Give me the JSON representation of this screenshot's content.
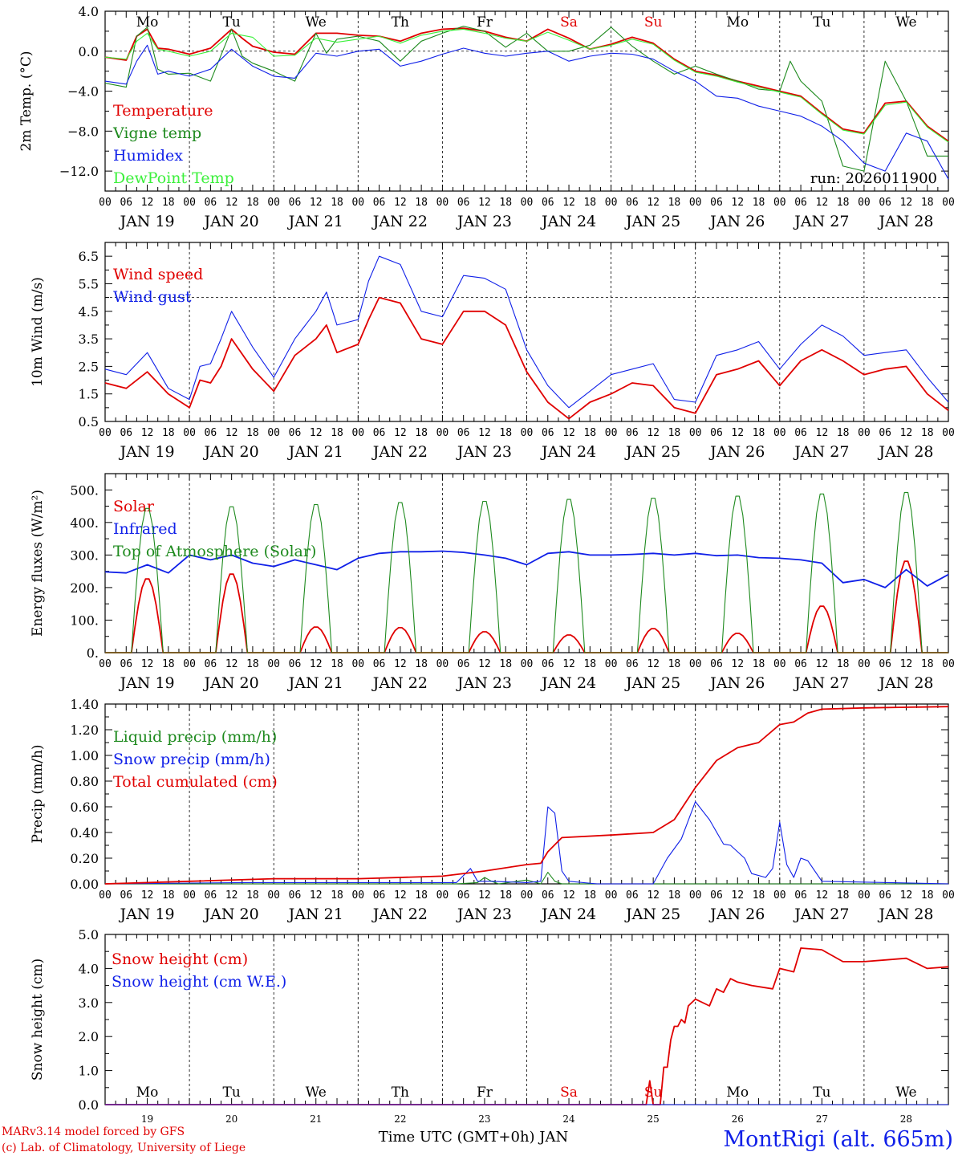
{
  "colors": {
    "red": "#e00000",
    "green": "#1e8a1e",
    "blue": "#1020e8",
    "lightgreen": "#3cf03c",
    "axis": "#000000"
  },
  "days": [
    "JAN 19",
    "JAN 20",
    "JAN 21",
    "JAN 22",
    "JAN 23",
    "JAN 24",
    "JAN 25",
    "JAN 26",
    "JAN 27",
    "JAN 28"
  ],
  "weekdays": [
    "Mo",
    "Tu",
    "We",
    "Th",
    "Fr",
    "Sa",
    "Su",
    "Mo",
    "Tu",
    "We"
  ],
  "weekend_flags": [
    false,
    false,
    false,
    false,
    false,
    true,
    true,
    false,
    false,
    false
  ],
  "day_numbers": [
    "19",
    "20",
    "21",
    "22",
    "23",
    "24",
    "25",
    "26",
    "27",
    "28"
  ],
  "hour_ticks": [
    "00",
    "06",
    "12",
    "18"
  ],
  "hour_end_tick": "00",
  "footer": {
    "model": "MARv3.14 model forced by GFS",
    "lab": "(c) Lab. of Climatology, University of Liege",
    "xlabel": "Time UTC (GMT+0h) JAN",
    "station": "MontRigi (alt. 665m)"
  },
  "chart_data": [
    {
      "type": "line",
      "id": "temp",
      "ylabel": "2m Temp. (°C)",
      "ylim": [
        -14,
        4
      ],
      "yticks": [
        4,
        0,
        -4,
        -8,
        -12
      ],
      "ytick_labels": [
        "4.0",
        "0.0",
        "−4.0",
        "−8.0",
        "−12.0"
      ],
      "refline": 0,
      "show_weekdays": true,
      "annotation": "run: 2026011900",
      "x_units": "hours since 2026-01-19 00 UTC",
      "series": [
        {
          "name": "Temperature",
          "color": "red",
          "x": [
            0,
            6,
            9,
            12,
            15,
            18,
            24,
            30,
            36,
            39,
            42,
            48,
            54,
            60,
            66,
            72,
            78,
            84,
            90,
            96,
            102,
            108,
            114,
            120,
            126,
            132,
            138,
            144,
            150,
            156,
            162,
            168,
            174,
            180,
            186,
            192,
            198,
            204,
            210,
            216,
            222,
            228,
            234,
            240
          ],
          "values": [
            -0.6,
            -0.9,
            1.5,
            2.2,
            0.3,
            0.2,
            -0.3,
            0.3,
            2.2,
            1.3,
            0.5,
            -0.1,
            -0.3,
            1.8,
            1.8,
            1.6,
            1.5,
            1.0,
            1.8,
            2.2,
            2.3,
            2.0,
            1.4,
            1.0,
            2.2,
            1.3,
            0.2,
            0.7,
            1.4,
            0.8,
            -0.8,
            -2.0,
            -2.4,
            -3.0,
            -3.5,
            -4.0,
            -4.5,
            -6.2,
            -7.8,
            -8.2,
            -5.2,
            -5.0,
            -7.5,
            -9.0
          ]
        },
        {
          "name": "Vigne temp",
          "color": "green",
          "x": [
            0,
            6,
            9,
            12,
            15,
            18,
            24,
            30,
            36,
            39,
            42,
            48,
            54,
            60,
            63,
            66,
            72,
            78,
            84,
            90,
            96,
            102,
            108,
            114,
            120,
            126,
            132,
            138,
            144,
            150,
            156,
            162,
            168,
            174,
            180,
            186,
            192,
            195,
            198,
            204,
            210,
            216,
            222,
            228,
            234,
            240
          ],
          "values": [
            -3.2,
            -3.6,
            1.5,
            2.4,
            -1.8,
            -2.3,
            -2.2,
            -3.0,
            2.2,
            -0.5,
            -1.2,
            -2.0,
            -3.0,
            1.8,
            -0.2,
            1.2,
            1.5,
            1.0,
            -1.0,
            1.0,
            1.8,
            2.5,
            2.0,
            0.4,
            1.8,
            0.0,
            0.0,
            0.6,
            2.4,
            0.5,
            -1.0,
            -2.3,
            -1.5,
            -2.3,
            -3.0,
            -3.8,
            -4.0,
            -1.0,
            -3.0,
            -5.0,
            -11.5,
            -12.0,
            -1.0,
            -5.0,
            -10.5,
            -10.5
          ]
        },
        {
          "name": "Humidex",
          "color": "blue",
          "x": [
            0,
            6,
            9,
            12,
            15,
            18,
            24,
            30,
            36,
            42,
            48,
            54,
            60,
            66,
            72,
            78,
            84,
            90,
            96,
            102,
            108,
            114,
            120,
            126,
            132,
            138,
            144,
            150,
            156,
            162,
            168,
            174,
            180,
            186,
            192,
            198,
            204,
            210,
            216,
            222,
            228,
            234,
            240
          ],
          "values": [
            -3.0,
            -3.3,
            -1.0,
            0.6,
            -2.3,
            -2.0,
            -2.5,
            -1.8,
            0.2,
            -1.5,
            -2.5,
            -2.7,
            -0.2,
            -0.5,
            0.0,
            0.2,
            -1.5,
            -1.0,
            -0.3,
            0.3,
            -0.2,
            -0.5,
            -0.2,
            0.0,
            -1.0,
            -0.5,
            -0.2,
            -0.3,
            -0.8,
            -2.0,
            -3.0,
            -4.5,
            -4.7,
            -5.5,
            -6.0,
            -6.5,
            -7.5,
            -9.0,
            -11.2,
            -12.0,
            -8.2,
            -9.0,
            -12.8
          ]
        },
        {
          "name": "DewPoint Temp",
          "color": "lightgreen",
          "x": [
            0,
            6,
            9,
            12,
            15,
            18,
            24,
            30,
            36,
            42,
            48,
            54,
            60,
            66,
            72,
            78,
            84,
            90,
            96,
            102,
            108,
            114,
            120,
            126,
            132,
            138,
            144,
            150,
            156,
            162,
            168,
            174,
            180,
            186,
            192,
            198,
            204,
            210,
            216,
            222,
            228,
            234,
            240
          ],
          "values": [
            -0.6,
            -0.8,
            1.0,
            1.8,
            0.2,
            0.0,
            -0.5,
            0.0,
            1.8,
            1.4,
            -0.5,
            -0.4,
            1.3,
            0.9,
            1.2,
            1.5,
            0.8,
            1.6,
            2.0,
            2.2,
            1.8,
            1.3,
            1.0,
            1.9,
            1.1,
            0.2,
            0.6,
            1.2,
            0.7,
            -0.9,
            -2.1,
            -2.5,
            -3.1,
            -3.6,
            -4.1,
            -4.6,
            -6.3,
            -7.9,
            -8.3,
            -5.4,
            -5.1,
            -7.6,
            -9.1
          ]
        }
      ]
    },
    {
      "type": "line",
      "id": "wind",
      "ylabel": "10m Wind (m/s)",
      "ylim": [
        0.5,
        7.0
      ],
      "yticks": [
        0.5,
        1.5,
        2.5,
        3.5,
        4.5,
        5.5,
        6.5
      ],
      "ytick_labels": [
        "0.5",
        "1.5",
        "2.5",
        "3.5",
        "4.5",
        "5.5",
        "6.5"
      ],
      "refline": 5.0,
      "show_weekdays": false,
      "series": [
        {
          "name": "Wind speed",
          "color": "red",
          "x": [
            0,
            6,
            12,
            18,
            24,
            27,
            30,
            33,
            36,
            42,
            48,
            54,
            60,
            63,
            66,
            72,
            75,
            78,
            84,
            90,
            96,
            102,
            108,
            114,
            120,
            126,
            132,
            138,
            144,
            150,
            156,
            162,
            168,
            174,
            180,
            186,
            192,
            198,
            204,
            210,
            216,
            222,
            228,
            234,
            240
          ],
          "values": [
            1.9,
            1.7,
            2.3,
            1.5,
            1.0,
            2.0,
            1.9,
            2.5,
            3.5,
            2.4,
            1.6,
            2.9,
            3.5,
            4.0,
            3.0,
            3.3,
            4.2,
            5.0,
            4.8,
            3.5,
            3.3,
            4.5,
            4.5,
            4.0,
            2.3,
            1.2,
            0.6,
            1.2,
            1.5,
            1.9,
            1.8,
            1.0,
            0.8,
            2.2,
            2.4,
            2.7,
            1.8,
            2.7,
            3.1,
            2.7,
            2.2,
            2.4,
            2.5,
            1.5,
            0.9
          ]
        },
        {
          "name": "Wind gust",
          "color": "blue",
          "x": [
            0,
            6,
            12,
            18,
            24,
            27,
            30,
            33,
            36,
            42,
            48,
            54,
            60,
            63,
            66,
            72,
            75,
            78,
            84,
            90,
            96,
            102,
            108,
            114,
            120,
            126,
            132,
            138,
            144,
            150,
            156,
            162,
            168,
            174,
            180,
            186,
            192,
            198,
            204,
            210,
            216,
            222,
            228,
            234,
            240
          ],
          "values": [
            2.4,
            2.2,
            3.0,
            1.7,
            1.3,
            2.5,
            2.6,
            3.5,
            4.5,
            3.2,
            2.1,
            3.5,
            4.5,
            5.2,
            4.0,
            4.2,
            5.6,
            6.5,
            6.2,
            4.5,
            4.3,
            5.8,
            5.7,
            5.3,
            3.1,
            1.8,
            1.0,
            1.6,
            2.2,
            2.4,
            2.6,
            1.3,
            1.2,
            2.9,
            3.1,
            3.4,
            2.4,
            3.3,
            4.0,
            3.6,
            2.9,
            3.0,
            3.1,
            2.1,
            1.2
          ]
        }
      ]
    },
    {
      "type": "line",
      "id": "energy",
      "ylabel": "Energy fluxes (W/m²)",
      "ylim": [
        0,
        550
      ],
      "yticks": [
        0,
        100,
        200,
        300,
        400,
        500
      ],
      "ytick_labels": [
        "0.",
        "100.",
        "200.",
        "300.",
        "400.",
        "500."
      ],
      "show_weekdays": false,
      "series": [
        {
          "name": "Solar",
          "color": "red",
          "daily_noon_peaks": [
            230,
            245,
            80,
            78,
            65,
            55,
            75,
            60,
            145,
            285
          ],
          "daytime_hours": [
            7.5,
            16.5
          ]
        },
        {
          "name": "Infrared",
          "color": "blue",
          "x": [
            0,
            6,
            12,
            18,
            24,
            30,
            36,
            42,
            48,
            54,
            60,
            66,
            72,
            78,
            84,
            90,
            96,
            102,
            108,
            114,
            120,
            126,
            132,
            138,
            144,
            150,
            156,
            162,
            168,
            174,
            180,
            186,
            192,
            198,
            204,
            210,
            216,
            222,
            228,
            234,
            240
          ],
          "values": [
            248,
            245,
            270,
            245,
            300,
            285,
            300,
            275,
            265,
            285,
            270,
            255,
            290,
            305,
            310,
            310,
            312,
            308,
            300,
            290,
            270,
            305,
            310,
            300,
            300,
            302,
            305,
            300,
            305,
            298,
            300,
            292,
            290,
            285,
            275,
            215,
            225,
            200,
            255,
            205,
            240
          ]
        },
        {
          "name": "Top of Atmosphere (Solar)",
          "color": "green",
          "daily_noon_peaks": [
            450,
            455,
            462,
            468,
            472,
            478,
            482,
            488,
            495,
            500
          ],
          "daytime_hours": [
            7.5,
            16.5
          ]
        }
      ]
    },
    {
      "type": "line",
      "id": "precip",
      "ylabel": "Precip (mm/h)",
      "ylim": [
        0,
        1.4
      ],
      "yticks": [
        0,
        0.2,
        0.4,
        0.6,
        0.8,
        1.0,
        1.2,
        1.4
      ],
      "ytick_labels": [
        "0.00",
        "0.20",
        "0.40",
        "0.60",
        "0.80",
        "1.00",
        "1.20",
        "1.40"
      ],
      "show_weekdays": false,
      "series": [
        {
          "name": "Liquid precip (mm/h)",
          "color": "green",
          "x": [
            0,
            100,
            106,
            108,
            110,
            112,
            120,
            124,
            126,
            128,
            130,
            140,
            240
          ],
          "values": [
            0,
            0,
            0.01,
            0.05,
            0.02,
            0.0,
            0.03,
            0.0,
            0.09,
            0.02,
            0.0,
            0.0,
            0
          ]
        },
        {
          "name": "Snow precip (mm/h)",
          "color": "blue",
          "x": [
            0,
            40,
            100,
            104,
            106,
            110,
            120,
            124,
            126,
            128,
            130,
            132,
            140,
            156,
            160,
            164,
            168,
            172,
            176,
            178,
            182,
            184,
            188,
            190,
            192,
            194,
            196,
            198,
            200,
            204,
            240
          ],
          "values": [
            0,
            0.01,
            0.01,
            0.12,
            0.02,
            0.02,
            0.01,
            0.02,
            0.6,
            0.55,
            0.1,
            0.02,
            0.0,
            0.0,
            0.2,
            0.35,
            0.64,
            0.5,
            0.31,
            0.3,
            0.2,
            0.08,
            0.05,
            0.12,
            0.48,
            0.15,
            0.05,
            0.2,
            0.18,
            0.02,
            0.0
          ]
        },
        {
          "name": "Total cumulated (cm)",
          "color": "red",
          "x": [
            0,
            24,
            48,
            72,
            96,
            108,
            120,
            124,
            126,
            130,
            144,
            156,
            162,
            168,
            174,
            180,
            186,
            192,
            196,
            200,
            204,
            216,
            228,
            240
          ],
          "values": [
            0,
            0.02,
            0.04,
            0.04,
            0.06,
            0.1,
            0.15,
            0.16,
            0.25,
            0.36,
            0.38,
            0.4,
            0.5,
            0.75,
            0.96,
            1.06,
            1.1,
            1.24,
            1.26,
            1.33,
            1.36,
            1.37,
            1.375,
            1.38
          ]
        }
      ]
    },
    {
      "type": "line",
      "id": "snow",
      "ylabel": "Snow height (cm)",
      "ylim": [
        0,
        5.0
      ],
      "yticks": [
        0,
        1,
        2,
        3,
        4,
        5
      ],
      "ytick_labels": [
        "0.0",
        "1.0",
        "2.0",
        "3.0",
        "4.0",
        "5.0"
      ],
      "show_weekdays": true,
      "series": [
        {
          "name": "Snow height (cm)",
          "color": "red",
          "x": [
            0,
            150,
            154,
            155,
            156,
            157,
            158,
            159,
            160,
            161,
            162,
            163,
            164,
            165,
            166,
            168,
            172,
            174,
            176,
            178,
            180,
            184,
            190,
            192,
            196,
            198,
            204,
            210,
            216,
            222,
            228,
            234,
            240
          ],
          "values": [
            0,
            0,
            0,
            0.7,
            0,
            0,
            0,
            1.1,
            1.1,
            1.9,
            2.3,
            2.3,
            2.5,
            2.4,
            2.9,
            3.1,
            2.9,
            3.4,
            3.3,
            3.7,
            3.6,
            3.5,
            3.4,
            4.0,
            3.9,
            4.6,
            4.55,
            4.2,
            4.2,
            4.25,
            4.3,
            4.0,
            4.05
          ]
        },
        {
          "name": "Snow height (cm W.E.)",
          "color": "blue",
          "x": [
            0,
            240
          ],
          "values": [
            0,
            0
          ]
        }
      ]
    }
  ]
}
